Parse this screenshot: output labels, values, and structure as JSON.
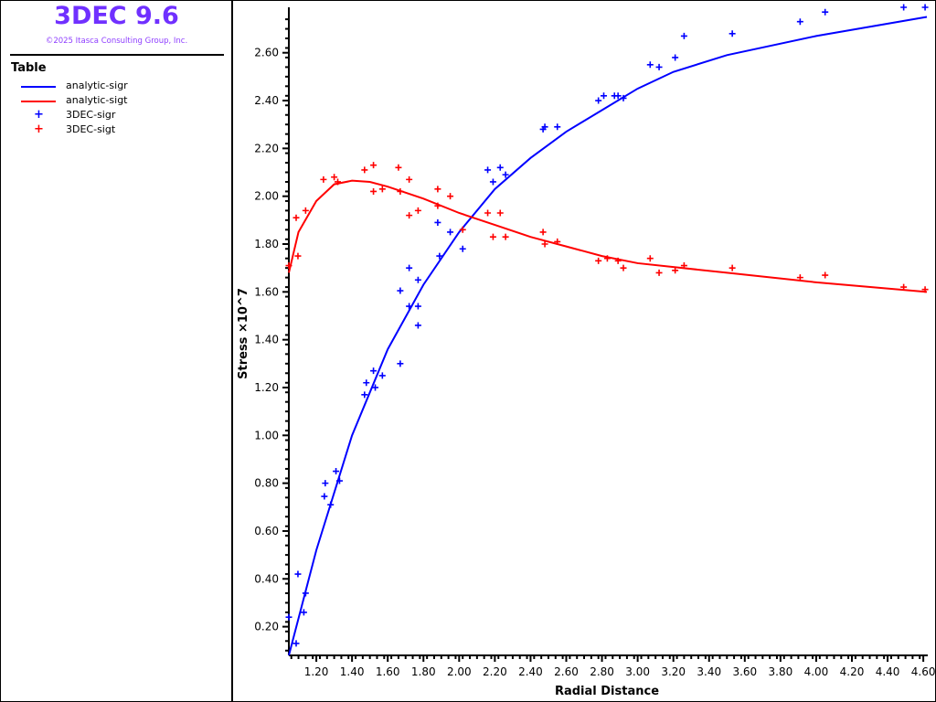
{
  "app": {
    "title": "3DEC 9.6",
    "copyright": "©2025 Itasca Consulting Group, Inc."
  },
  "legend": {
    "title": "Table",
    "items": [
      {
        "label": "analytic-sigr",
        "color": "#0000ff",
        "kind": "line"
      },
      {
        "label": "analytic-sigt",
        "color": "#ff0000",
        "kind": "line"
      },
      {
        "label": "3DEC-sigr",
        "color": "#0000ff",
        "kind": "marker"
      },
      {
        "label": "3DEC-sigt",
        "color": "#ff0000",
        "kind": "marker"
      }
    ]
  },
  "chart_data": {
    "type": "line",
    "xlabel": "Radial Distance",
    "ylabel": "Stress ×10^7",
    "xlim": [
      1.046,
      4.625
    ],
    "ylim": [
      0.08,
      2.79
    ],
    "xticks": [
      "1.20",
      "1.40",
      "1.60",
      "1.80",
      "2.00",
      "2.20",
      "2.40",
      "2.60",
      "2.80",
      "3.00",
      "3.20",
      "3.40",
      "3.60",
      "3.80",
      "4.00",
      "4.20",
      "4.40",
      "4.60"
    ],
    "yticks": [
      "0.20",
      "0.40",
      "0.60",
      "0.80",
      "1.00",
      "1.20",
      "1.40",
      "1.60",
      "1.80",
      "2.00",
      "2.20",
      "2.40",
      "2.60"
    ],
    "series": [
      {
        "name": "analytic-sigr",
        "type": "line",
        "color": "#0000ff",
        "points": [
          [
            1.046,
            0.08
          ],
          [
            1.2,
            0.52
          ],
          [
            1.4,
            1.0
          ],
          [
            1.6,
            1.36
          ],
          [
            1.8,
            1.63
          ],
          [
            2.0,
            1.85
          ],
          [
            2.2,
            2.03
          ],
          [
            2.4,
            2.16
          ],
          [
            2.6,
            2.27
          ],
          [
            2.8,
            2.36
          ],
          [
            3.0,
            2.45
          ],
          [
            3.2,
            2.52
          ],
          [
            3.5,
            2.59
          ],
          [
            4.0,
            2.67
          ],
          [
            4.62,
            2.75
          ]
        ]
      },
      {
        "name": "analytic-sigt",
        "type": "line",
        "color": "#ff0000",
        "points": [
          [
            1.046,
            1.68
          ],
          [
            1.1,
            1.85
          ],
          [
            1.2,
            1.98
          ],
          [
            1.3,
            2.05
          ],
          [
            1.4,
            2.065
          ],
          [
            1.5,
            2.06
          ],
          [
            1.6,
            2.04
          ],
          [
            1.8,
            1.99
          ],
          [
            2.0,
            1.93
          ],
          [
            2.2,
            1.88
          ],
          [
            2.4,
            1.83
          ],
          [
            2.6,
            1.79
          ],
          [
            2.8,
            1.75
          ],
          [
            3.0,
            1.72
          ],
          [
            3.5,
            1.68
          ],
          [
            4.0,
            1.64
          ],
          [
            4.62,
            1.6
          ]
        ]
      },
      {
        "name": "3DEC-sigr",
        "type": "scatter",
        "color": "#0000ff",
        "points": [
          [
            1.046,
            0.24
          ],
          [
            1.087,
            0.13
          ],
          [
            1.097,
            0.42
          ],
          [
            1.13,
            0.26
          ],
          [
            1.14,
            0.34
          ],
          [
            1.245,
            0.745
          ],
          [
            1.25,
            0.8
          ],
          [
            1.28,
            0.71
          ],
          [
            1.31,
            0.85
          ],
          [
            1.33,
            0.81
          ],
          [
            1.47,
            1.17
          ],
          [
            1.48,
            1.22
          ],
          [
            1.52,
            1.27
          ],
          [
            1.53,
            1.2
          ],
          [
            1.57,
            1.25
          ],
          [
            1.67,
            1.3
          ],
          [
            1.67,
            1.605
          ],
          [
            1.72,
            1.7
          ],
          [
            1.72,
            1.54
          ],
          [
            1.77,
            1.46
          ],
          [
            1.77,
            1.54
          ],
          [
            1.77,
            1.65
          ],
          [
            1.88,
            1.89
          ],
          [
            1.89,
            1.75
          ],
          [
            1.95,
            1.85
          ],
          [
            2.02,
            1.78
          ],
          [
            2.16,
            2.11
          ],
          [
            2.19,
            2.06
          ],
          [
            2.23,
            2.12
          ],
          [
            2.26,
            2.09
          ],
          [
            2.47,
            2.28
          ],
          [
            2.48,
            2.29
          ],
          [
            2.55,
            2.29
          ],
          [
            2.78,
            2.4
          ],
          [
            2.81,
            2.42
          ],
          [
            2.87,
            2.42
          ],
          [
            2.89,
            2.42
          ],
          [
            2.92,
            2.41
          ],
          [
            3.07,
            2.55
          ],
          [
            3.12,
            2.54
          ],
          [
            3.21,
            2.58
          ],
          [
            3.26,
            2.67
          ],
          [
            3.53,
            2.68
          ],
          [
            3.91,
            2.73
          ],
          [
            4.05,
            2.77
          ],
          [
            4.49,
            2.79
          ],
          [
            4.61,
            2.79
          ]
        ]
      },
      {
        "name": "3DEC-sigt",
        "type": "scatter",
        "color": "#ff0000",
        "points": [
          [
            1.046,
            1.71
          ],
          [
            1.087,
            1.91
          ],
          [
            1.097,
            1.75
          ],
          [
            1.14,
            1.94
          ],
          [
            1.24,
            2.07
          ],
          [
            1.3,
            2.08
          ],
          [
            1.32,
            2.06
          ],
          [
            1.47,
            2.11
          ],
          [
            1.52,
            2.13
          ],
          [
            1.52,
            2.02
          ],
          [
            1.57,
            2.03
          ],
          [
            1.66,
            2.12
          ],
          [
            1.67,
            2.02
          ],
          [
            1.72,
            2.07
          ],
          [
            1.72,
            1.92
          ],
          [
            1.77,
            1.94
          ],
          [
            1.88,
            2.03
          ],
          [
            1.88,
            1.96
          ],
          [
            1.95,
            2.0
          ],
          [
            2.02,
            1.86
          ],
          [
            2.16,
            1.93
          ],
          [
            2.19,
            1.83
          ],
          [
            2.23,
            1.93
          ],
          [
            2.26,
            1.83
          ],
          [
            2.47,
            1.85
          ],
          [
            2.48,
            1.8
          ],
          [
            2.55,
            1.81
          ],
          [
            2.78,
            1.73
          ],
          [
            2.83,
            1.74
          ],
          [
            2.89,
            1.73
          ],
          [
            2.92,
            1.7
          ],
          [
            3.07,
            1.74
          ],
          [
            3.12,
            1.68
          ],
          [
            3.21,
            1.69
          ],
          [
            3.26,
            1.71
          ],
          [
            3.53,
            1.7
          ],
          [
            3.91,
            1.66
          ],
          [
            4.05,
            1.67
          ],
          [
            4.49,
            1.62
          ],
          [
            4.61,
            1.61
          ]
        ]
      }
    ]
  }
}
